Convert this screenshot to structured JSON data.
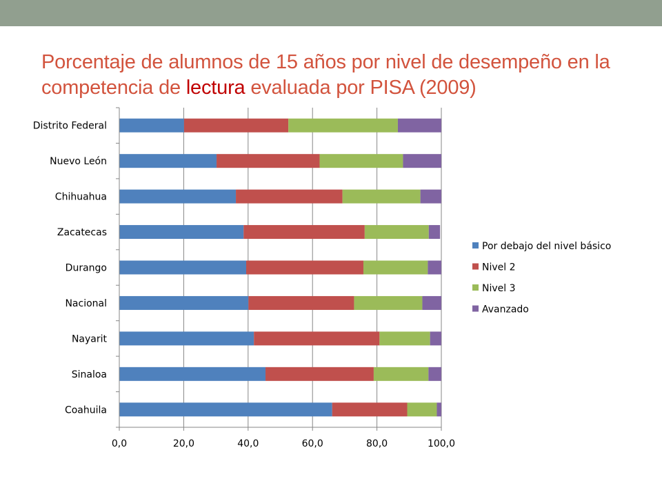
{
  "title": {
    "before": "Porcentaje de alumnos de 15 años por nivel de desempeño en la competencia de ",
    "highlight": "lectura",
    "after": " evaluada por PISA (2009)"
  },
  "colors": {
    "top_bar": "#919f8f",
    "title": "#d2533d",
    "highlight": "#c00000"
  },
  "chart_data": {
    "type": "bar",
    "orientation": "horizontal",
    "stacked": true,
    "categories": [
      "Distrito Federal",
      "Nuevo León",
      "Chihuahua",
      "Zacatecas",
      "Durango",
      "Nacional",
      "Nayarit",
      "Sinaloa",
      "Coahuila"
    ],
    "series": [
      {
        "name": "Por debajo del nivel básico",
        "color": "#4f81bd",
        "values": [
          20.1,
          30.2,
          36.2,
          38.6,
          39.4,
          40.1,
          41.8,
          45.4,
          66.1
        ]
      },
      {
        "name": "Nivel 2",
        "color": "#c0504d",
        "values": [
          32.4,
          32.0,
          33.1,
          37.6,
          36.4,
          32.8,
          39.0,
          33.6,
          23.3
        ]
      },
      {
        "name": "Nivel 3",
        "color": "#9bbb59",
        "values": [
          34.0,
          25.9,
          24.2,
          19.9,
          20.0,
          21.2,
          15.7,
          17.0,
          9.2
        ]
      },
      {
        "name": "Avanzado",
        "color": "#8064a2",
        "values": [
          13.5,
          11.9,
          6.5,
          3.5,
          4.2,
          5.9,
          3.5,
          4.0,
          1.4
        ]
      }
    ],
    "xlim": [
      0,
      100
    ],
    "xticks": [
      "0,0",
      "20,0",
      "40,0",
      "60,0",
      "80,0",
      "100,0"
    ],
    "grid": true,
    "legend": "right"
  }
}
